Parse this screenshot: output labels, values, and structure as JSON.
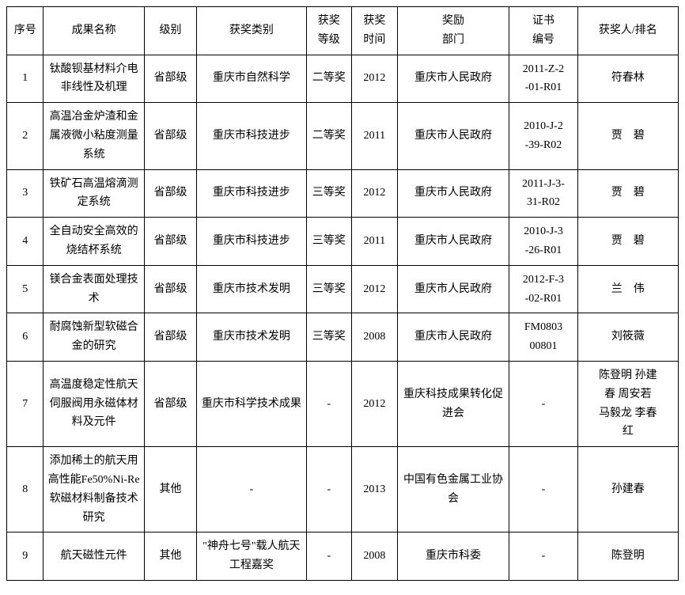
{
  "table": {
    "headers": {
      "num": "序号",
      "name": "成果名称",
      "level": "级别",
      "type": "获奖类别",
      "grade_l1": "获奖",
      "grade_l2": "等级",
      "time_l1": "获奖",
      "time_l2": "时间",
      "dept_l1": "奖励",
      "dept_l2": "部门",
      "cert_l1": "证书",
      "cert_l2": "编号",
      "person": "获奖人/排名"
    },
    "rows": [
      {
        "num": "1",
        "name": "钛酸钡基材料介电非线性及机理",
        "level": "省部级",
        "type": "重庆市自然科学",
        "grade": "二等奖",
        "time": "2012",
        "dept": "重庆市人民政府",
        "cert_l1": "2011-Z-2",
        "cert_l2": "-01-R01",
        "person": "符春林"
      },
      {
        "num": "2",
        "name": "高温冶金炉渣和金属液微小粘度测量系统",
        "level": "省部级",
        "type": "重庆市科技进步",
        "grade": "二等奖",
        "time": "2011",
        "dept": "重庆市人民政府",
        "cert_l1": "2010-J-2",
        "cert_l2": "-39-R02",
        "person": "贾　碧"
      },
      {
        "num": "3",
        "name": "铁矿石高温熔滴测定系统",
        "level": "省部级",
        "type": "重庆市科技进步",
        "grade": "三等奖",
        "time": "2012",
        "dept": "重庆市人民政府",
        "cert_l1": "2011-J-3-",
        "cert_l2": "31-R02",
        "person": "贾　碧"
      },
      {
        "num": "4",
        "name": "全自动安全高效的烧结杯系统",
        "level": "省部级",
        "type": "重庆市科技进步",
        "grade": "三等奖",
        "time": "2011",
        "dept": "重庆市人民政府",
        "cert_l1": "2010-J-3",
        "cert_l2": "-26-R01",
        "person": "贾　碧"
      },
      {
        "num": "5",
        "name": "镁合金表面处理技术",
        "level": "省部级",
        "type": "重庆市技术发明",
        "grade": "三等奖",
        "time": "2012",
        "dept": "重庆市人民政府",
        "cert_l1": "2012-F-3",
        "cert_l2": "-02-R01",
        "person": "兰　伟"
      },
      {
        "num": "6",
        "name": "耐腐蚀新型软磁合金的研究",
        "level": "省部级",
        "type": "重庆市技术发明",
        "grade": "三等奖",
        "time": "2008",
        "dept": "重庆市人民政府",
        "cert_l1": "FM0803",
        "cert_l2": "00801",
        "person": "刘筱薇"
      },
      {
        "num": "7",
        "name": "高温度稳定性航天伺服阀用永磁体材料及元件",
        "level": "省部级",
        "type": "重庆市科学技术成果",
        "grade": "-",
        "time": "2012",
        "dept": "重庆科技成果转化促进会",
        "cert_l1": "-",
        "cert_l2": "",
        "person_l1": "陈登明 孙建",
        "person_l2": "春 周安若",
        "person_l3": "马毅龙 李春",
        "person_l4": "红"
      },
      {
        "num": "8",
        "name": "添加稀土的航天用高性能Fe50%Ni-Re软磁材料制备技术研究",
        "level": "其他",
        "type": "-",
        "grade": "-",
        "time": "2013",
        "dept": "中国有色金属工业协会",
        "cert_l1": "-",
        "cert_l2": "",
        "person": "孙建春"
      },
      {
        "num": "9",
        "name": "航天磁性元件",
        "level": "其他",
        "type": "\"神舟七号\"载人航天工程嘉奖",
        "grade": "-",
        "time": "2008",
        "dept": "重庆市科委",
        "cert_l1": "-",
        "cert_l2": "",
        "person": "陈登明"
      }
    ]
  }
}
